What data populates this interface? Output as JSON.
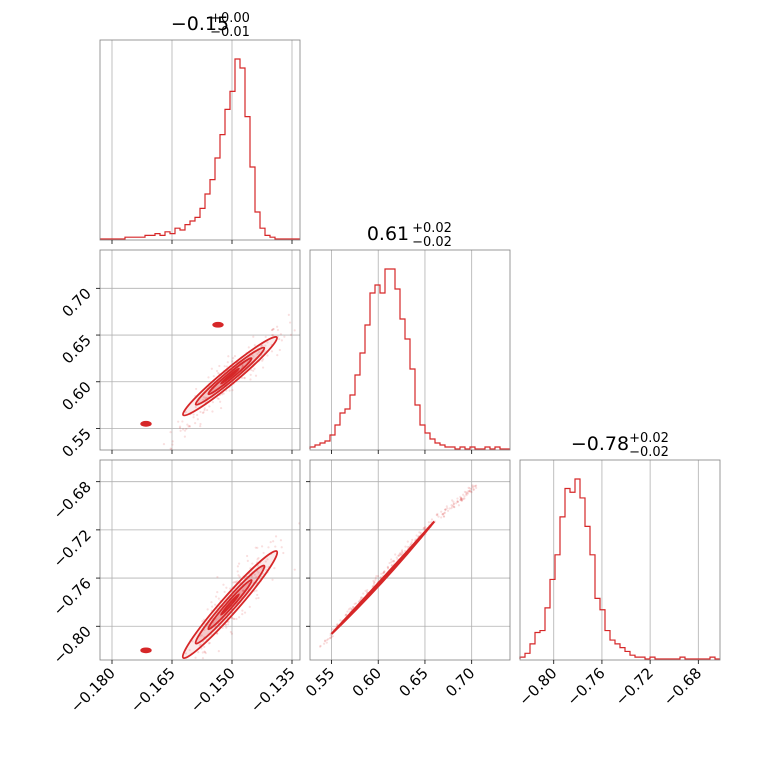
{
  "chart_data": {
    "type": "corner",
    "color": "#d62728",
    "parameters": [
      {
        "title": {
          "median": "−0.15",
          "upper": "+0.00",
          "lower": "−0.01"
        },
        "range": [
          -0.183,
          -0.133
        ],
        "ticks": [
          -0.18,
          -0.165,
          -0.15,
          -0.135
        ],
        "tick_labels": [
          "−0.180",
          "−0.165",
          "−0.150",
          "−0.135"
        ],
        "histogram": {
          "edges_start": -0.183,
          "edges_end": -0.133,
          "counts": [
            0,
            0,
            0,
            0,
            0,
            1,
            1,
            1,
            1,
            2,
            2,
            3,
            2,
            4,
            3,
            6,
            5,
            8,
            10,
            12,
            17,
            25,
            33,
            45,
            58,
            72,
            82,
            100,
            95,
            68,
            40,
            15,
            6,
            2,
            1,
            0,
            0,
            0,
            0,
            0
          ]
        }
      },
      {
        "title": {
          "median": "0.61",
          "upper": "+0.02",
          "lower": "−0.02"
        },
        "range": [
          0.527,
          0.741
        ],
        "ticks": [
          0.55,
          0.6,
          0.65,
          0.7
        ],
        "tick_labels": [
          "0.55",
          "0.60",
          "0.65",
          "0.70"
        ],
        "histogram": {
          "edges_start": 0.527,
          "edges_end": 0.741,
          "counts": [
            1,
            2,
            3,
            4,
            7,
            12,
            18,
            20,
            27,
            37,
            48,
            62,
            78,
            82,
            78,
            90,
            90,
            80,
            65,
            55,
            40,
            22,
            12,
            8,
            5,
            3,
            2,
            1,
            1,
            0,
            1,
            0,
            1,
            0,
            0,
            1,
            0,
            1,
            0,
            0
          ]
        }
      },
      {
        "title": {
          "median": "−0.78",
          "upper": "+0.02",
          "lower": "−0.02"
        },
        "range": [
          -0.828,
          -0.662
        ],
        "ticks": [
          -0.8,
          -0.76,
          -0.72,
          -0.68
        ],
        "tick_labels": [
          "−0.80",
          "−0.76",
          "−0.72",
          "−0.68"
        ],
        "histogram": {
          "edges_start": -0.828,
          "edges_end": -0.662,
          "counts": [
            1,
            3,
            8,
            14,
            15,
            27,
            42,
            55,
            75,
            90,
            88,
            95,
            85,
            70,
            55,
            32,
            26,
            15,
            10,
            8,
            6,
            4,
            2,
            1,
            1,
            0,
            1,
            0,
            0,
            0,
            0,
            0,
            1,
            0,
            0,
            0,
            0,
            0,
            1,
            0
          ]
        }
      }
    ],
    "joint": [
      {
        "x_param": 0,
        "y_param": 1,
        "blob": {
          "cx": -0.1505,
          "cy": 0.606,
          "sx": 0.0045,
          "sy": 0.016,
          "rho": 0.92
        },
        "islands": [
          {
            "x": -0.1535,
            "y": 0.661
          },
          {
            "x": -0.1715,
            "y": 0.555
          }
        ]
      },
      {
        "x_param": 0,
        "y_param": 2,
        "blob": {
          "cx": -0.1505,
          "cy": -0.782,
          "sx": 0.0045,
          "sy": 0.017,
          "rho": 0.92
        },
        "islands": [
          {
            "x": -0.1715,
            "y": -0.82
          }
        ]
      },
      {
        "x_param": 1,
        "y_param": 2,
        "curve": {
          "x_start": 0.54,
          "x_end": 0.705,
          "y_start": -0.816,
          "y_end": -0.683
        },
        "core": {
          "x_start": 0.55,
          "x_end": 0.66
        }
      }
    ],
    "grid": true
  }
}
